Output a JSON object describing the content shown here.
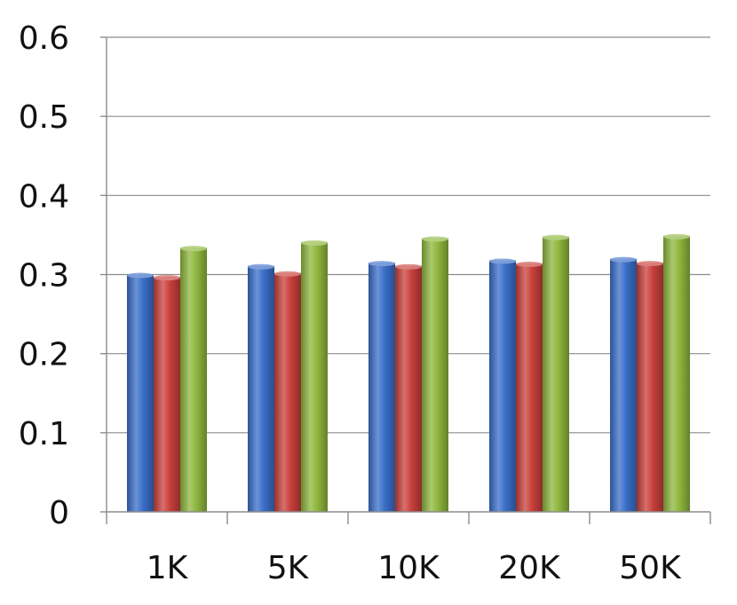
{
  "chart_data": {
    "type": "bar",
    "title": "",
    "xlabel": "",
    "ylabel": "",
    "categories": [
      "1K",
      "5K",
      "10K",
      "20K",
      "50K"
    ],
    "series": [
      {
        "values": [
          0.3,
          0.311,
          0.315,
          0.318,
          0.32
        ],
        "color": "#3a6fc9"
      },
      {
        "values": [
          0.297,
          0.302,
          0.311,
          0.314,
          0.315
        ],
        "color": "#c9403c"
      },
      {
        "values": [
          0.334,
          0.341,
          0.346,
          0.348,
          0.349
        ],
        "color": "#8fb73d"
      }
    ],
    "ylim": [
      0,
      0.6
    ],
    "yticks": [
      "0",
      "0.1",
      "0.2",
      "0.3",
      "0.4",
      "0.5",
      "0.6"
    ],
    "grid": true,
    "legend": "none"
  }
}
